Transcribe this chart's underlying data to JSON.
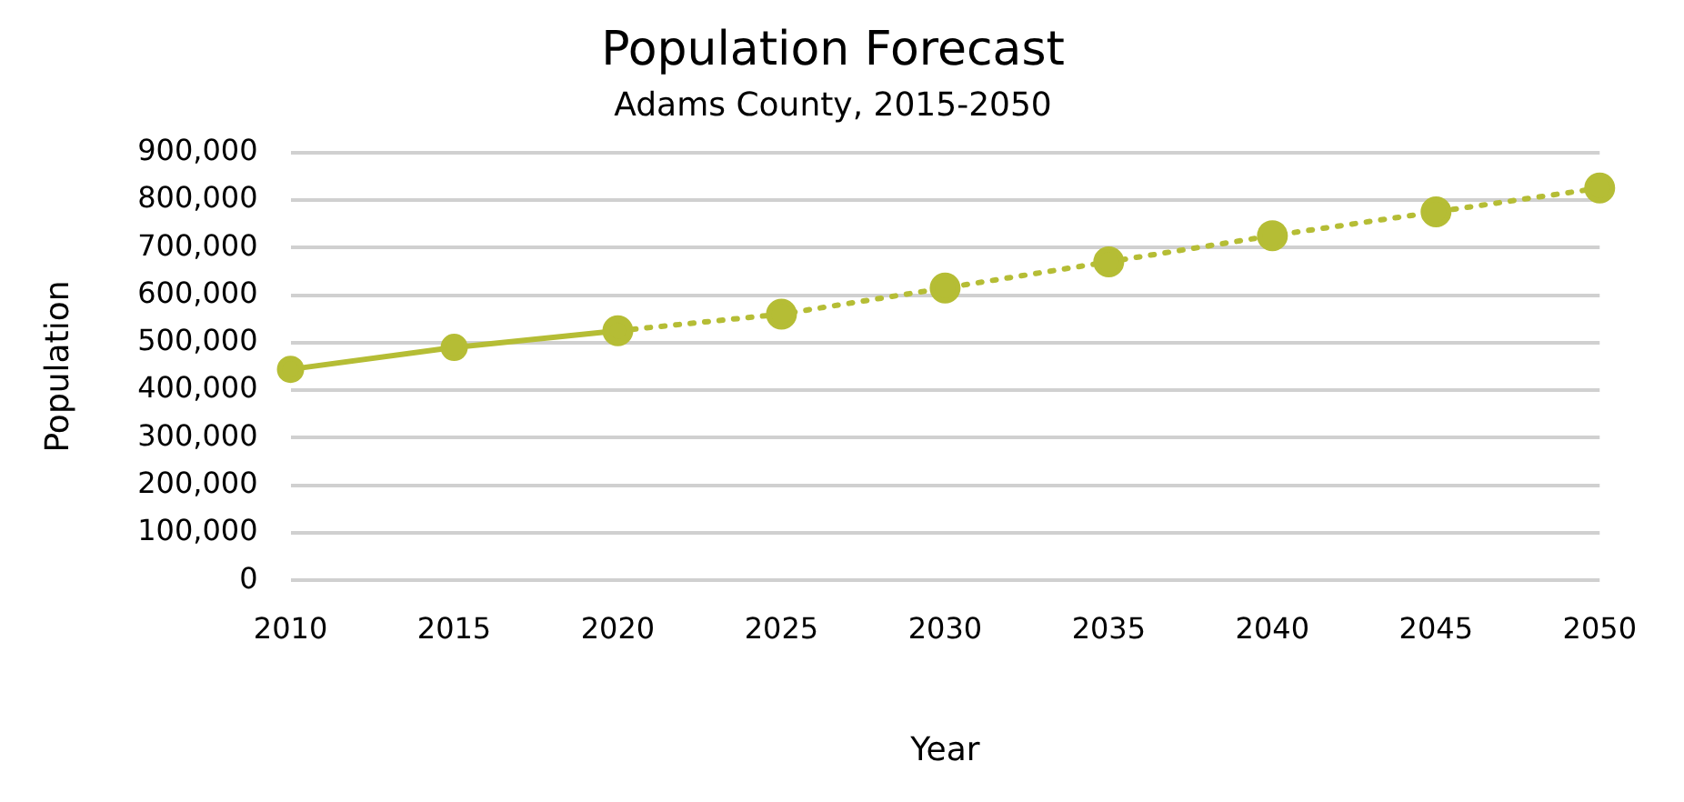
{
  "chart_data": {
    "type": "line",
    "title": "Population Forecast",
    "subtitle": "Adams County, 2015-2050",
    "xlabel": "Year",
    "ylabel": "Population",
    "categories": [
      "2010",
      "2015",
      "2020",
      "2025",
      "2030",
      "2035",
      "2040",
      "2045",
      "2050"
    ],
    "series": [
      {
        "color": "#b5bd35",
        "line_style": "solid",
        "values": [
          444000,
          490000,
          525000,
          null,
          null,
          null,
          null,
          null,
          null
        ]
      },
      {
        "color": "#b5bd35",
        "line_style": "dotted",
        "values": [
          null,
          null,
          525000,
          560000,
          615000,
          670000,
          725000,
          775000,
          825000
        ]
      }
    ],
    "ylim": [
      0,
      900000
    ],
    "yticks": [
      0,
      {
        "value": 100000,
        "label": "100,000"
      },
      {
        "value": 200000,
        "label": "200,000"
      },
      {
        "value": 300000,
        "label": "300,000"
      },
      {
        "value": 400000,
        "label": "400,000"
      },
      {
        "value": 500000,
        "label": "500,000"
      },
      {
        "value": 600000,
        "label": "600,000"
      },
      {
        "value": 700000,
        "label": "700,000"
      },
      {
        "value": 800000,
        "label": "800,000"
      },
      {
        "value": 900000,
        "label": "900,000"
      }
    ],
    "grid": "y",
    "legend": false,
    "marker": "circle"
  }
}
